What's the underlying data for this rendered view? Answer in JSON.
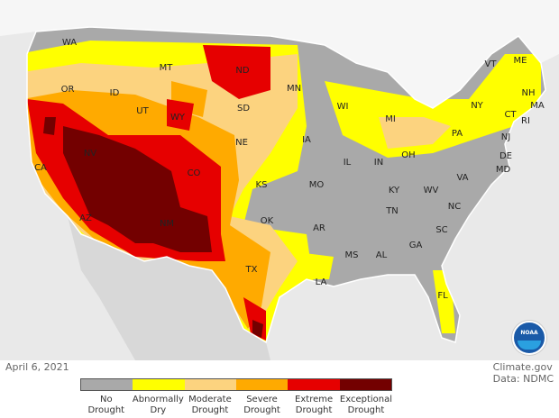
{
  "date": "April 6, 2021",
  "credit": {
    "line1": "Climate.gov",
    "line2": "Data: NDMC"
  },
  "logo": "NOAA",
  "legend": [
    {
      "label1": "No",
      "label2": "Drought",
      "color": "#a9a9a9"
    },
    {
      "label1": "Abnormally",
      "label2": "Dry",
      "color": "#ffff00"
    },
    {
      "label1": "Moderate",
      "label2": "Drought",
      "color": "#fcd37f"
    },
    {
      "label1": "Severe",
      "label2": "Drought",
      "color": "#ffaa00"
    },
    {
      "label1": "Extreme",
      "label2": "Drought",
      "color": "#e60000"
    },
    {
      "label1": "Exceptional",
      "label2": "Drought",
      "color": "#730000"
    }
  ],
  "states": [
    "WA",
    "OR",
    "CA",
    "NV",
    "ID",
    "MT",
    "WY",
    "UT",
    "CO",
    "AZ",
    "NM",
    "ND",
    "SD",
    "NE",
    "KS",
    "OK",
    "TX",
    "MN",
    "IA",
    "MO",
    "AR",
    "LA",
    "WI",
    "IL",
    "MS",
    "MI",
    "IN",
    "KY",
    "TN",
    "AL",
    "OH",
    "GA",
    "FL",
    "WV",
    "VA",
    "NC",
    "SC",
    "PA",
    "NY",
    "VT",
    "NH",
    "ME",
    "MA",
    "CT",
    "RI",
    "NJ",
    "DE",
    "MD"
  ]
}
